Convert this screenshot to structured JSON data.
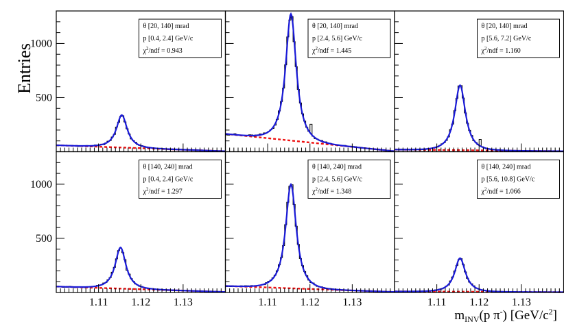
{
  "chart_data": {
    "type": "histogram-grid",
    "ylabel": "Entries",
    "xlabel_main": "m",
    "xlabel_sub": "INV",
    "xlabel_rest": "(p π",
    "xlabel_sup": "-",
    "xlabel_unit": ") [GeV/c",
    "xlabel_unit_sup": "2",
    "xlabel_close": "]",
    "xlim": [
      1.1,
      1.14
    ],
    "ylim": [
      0,
      1300
    ],
    "xticks": [
      {
        "value": 1.11,
        "label": "1.11"
      },
      {
        "value": 1.12,
        "label": "1.12"
      },
      {
        "value": 1.13,
        "label": "1.13"
      }
    ],
    "yticks": [
      {
        "value": 500,
        "label": "500"
      },
      {
        "value": 1000,
        "label": "1000"
      }
    ],
    "series_names": [
      "data histogram",
      "signal + background fit",
      "background fit"
    ],
    "colors": {
      "data": "#000000",
      "fit": "#1a1ad8",
      "background": "#ee1111"
    },
    "panels": [
      {
        "theta": "θ [20, 140] mrad",
        "p": "p [0.4, 2.4] GeV/c",
        "chi2_prefix": "χ",
        "chi2_sup": "2",
        "chi2_rest": "/ndf = 0.943",
        "peak": 300,
        "mean": 1.1155,
        "width": 0.00115,
        "bkg_start": 60,
        "bkg_end": 5
      },
      {
        "theta": "θ [20, 140] mrad",
        "p": "p [2.4, 5.6] GeV/c",
        "chi2_prefix": "χ",
        "chi2_sup": "2",
        "chi2_rest": "/ndf = 1.445",
        "peak": 1170,
        "mean": 1.1155,
        "width": 0.00115,
        "bkg_start": 165,
        "bkg_end": 5
      },
      {
        "theta": "θ [20, 140] mrad",
        "p": "p [5.6, 7.2] GeV/c",
        "chi2_prefix": "χ",
        "chi2_sup": "2",
        "chi2_rest": "/ndf = 1.160",
        "peak": 600,
        "mean": 1.1155,
        "width": 0.00115,
        "bkg_start": 20,
        "bkg_end": 5
      },
      {
        "theta": "θ [140, 240] mrad",
        "p": "p [0.4, 2.4] GeV/c",
        "chi2_prefix": "χ",
        "chi2_sup": "2",
        "chi2_rest": "/ndf = 1.297",
        "peak": 380,
        "mean": 1.1152,
        "width": 0.00115,
        "bkg_start": 55,
        "bkg_end": 5
      },
      {
        "theta": "θ [140, 240] mrad",
        "p": "p [2.4, 5.6] GeV/c",
        "chi2_prefix": "χ",
        "chi2_sup": "2",
        "chi2_rest": "/ndf = 1.348",
        "peak": 960,
        "mean": 1.1155,
        "width": 0.00115,
        "bkg_start": 60,
        "bkg_end": 5
      },
      {
        "theta": "θ [140, 240] mrad",
        "p": "p [5.6, 10.8] GeV/c",
        "chi2_prefix": "χ",
        "chi2_sup": "2",
        "chi2_rest": "/ndf = 1.066",
        "peak": 310,
        "mean": 1.1155,
        "width": 0.00115,
        "bkg_start": 10,
        "bkg_end": 3
      }
    ]
  }
}
